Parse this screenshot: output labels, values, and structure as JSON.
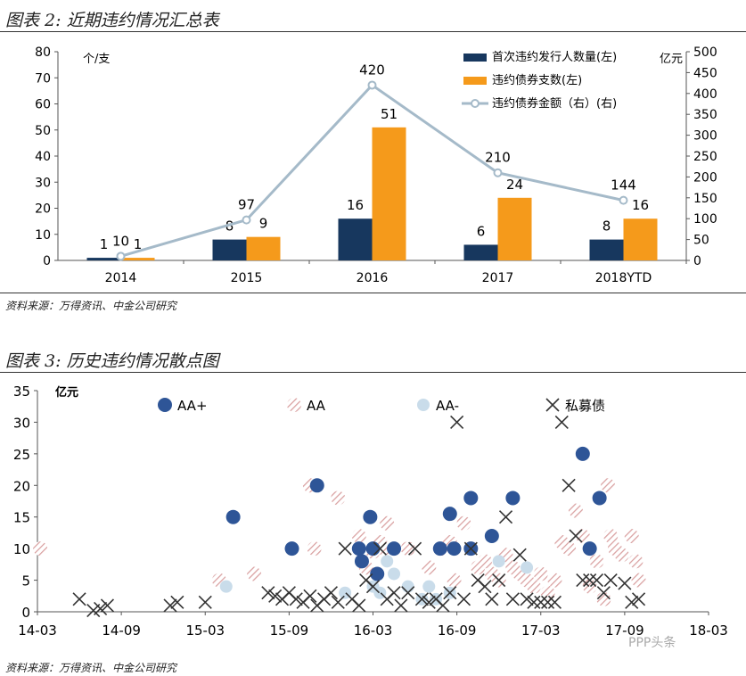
{
  "fig2": {
    "title": "图表 2: 近期违约情况汇总表",
    "source": "资料来源：万得资讯、中金公司研究"
  },
  "fig3": {
    "title": "图表 3: 历史违约情况散点图",
    "source": "资料来源：万得资讯、中金公司研究"
  },
  "watermark": "PPP头条",
  "chart_data": [
    {
      "type": "bar",
      "categories": [
        "2014",
        "2015",
        "2016",
        "2017",
        "2018YTD"
      ],
      "series": [
        {
          "name": "首次违约发行人数量(左)",
          "type": "bar",
          "axis": "left",
          "color": "#17375e",
          "values": [
            1,
            8,
            16,
            6,
            8
          ]
        },
        {
          "name": "违约债券支数(左)",
          "type": "bar",
          "axis": "left",
          "color": "#f59a1b",
          "values": [
            1,
            9,
            51,
            24,
            16
          ]
        },
        {
          "name": "违约债券金额（右）(右)",
          "type": "line",
          "axis": "right",
          "color": "#a5bac9",
          "values": [
            10,
            97,
            420,
            210,
            144
          ]
        }
      ],
      "ylabel_left": "个/支",
      "ylabel_right": "亿元",
      "ylim_left": [
        0,
        80
      ],
      "ylim_right": [
        0,
        500
      ],
      "yticks_left": [
        0,
        10,
        20,
        30,
        40,
        50,
        60,
        70,
        80
      ],
      "yticks_right": [
        0,
        50,
        100,
        150,
        200,
        250,
        300,
        350,
        400,
        450,
        500
      ],
      "legend": "top-right"
    },
    {
      "type": "scatter",
      "ylabel": "亿元",
      "ylim": [
        0,
        35
      ],
      "yticks": [
        0,
        5,
        10,
        15,
        20,
        25,
        30,
        35
      ],
      "xticks": [
        "14-03",
        "14-09",
        "15-03",
        "15-09",
        "16-03",
        "16-09",
        "17-03",
        "17-09",
        "18-03"
      ],
      "legend": "top",
      "series": [
        {
          "name": "AA+",
          "marker": "dot",
          "color": "#2e5597",
          "points": [
            [
              14.0,
              15
            ],
            [
              18.2,
              10
            ],
            [
              20.0,
              20
            ],
            [
              23.0,
              10
            ],
            [
              23.2,
              8
            ],
            [
              23.8,
              15
            ],
            [
              24.0,
              10
            ],
            [
              24.3,
              6
            ],
            [
              25.5,
              10
            ],
            [
              28.8,
              10
            ],
            [
              29.5,
              15.5
            ],
            [
              29.8,
              10
            ],
            [
              31.0,
              10
            ],
            [
              31.0,
              18
            ],
            [
              32.5,
              12
            ],
            [
              34.0,
              18
            ],
            [
              39.0,
              25
            ],
            [
              39.5,
              10
            ],
            [
              40.2,
              18
            ]
          ]
        },
        {
          "name": "AA",
          "marker": "hatched",
          "color": "#c0504d",
          "points": [
            [
              0.2,
              10
            ],
            [
              13.0,
              5
            ],
            [
              15.5,
              6
            ],
            [
              19.5,
              20
            ],
            [
              19.8,
              10
            ],
            [
              21.5,
              18
            ],
            [
              23.0,
              12
            ],
            [
              23.5,
              7
            ],
            [
              24.0,
              9.5
            ],
            [
              24.5,
              11
            ],
            [
              24.8,
              10
            ],
            [
              25.0,
              14
            ],
            [
              26.5,
              10
            ],
            [
              28.0,
              7
            ],
            [
              29.0,
              10
            ],
            [
              29.5,
              11
            ],
            [
              29.8,
              5
            ],
            [
              30.5,
              14
            ],
            [
              31.0,
              10
            ],
            [
              31.5,
              7
            ],
            [
              32.0,
              8
            ],
            [
              32.5,
              6
            ],
            [
              33.0,
              5
            ],
            [
              33.5,
              9
            ],
            [
              34.0,
              7
            ],
            [
              34.5,
              6
            ],
            [
              35.0,
              5
            ],
            [
              35.5,
              4
            ],
            [
              36.0,
              6
            ],
            [
              36.5,
              3
            ],
            [
              37.0,
              5
            ],
            [
              37.5,
              11
            ],
            [
              38.0,
              10
            ],
            [
              38.5,
              16
            ],
            [
              39.0,
              12
            ],
            [
              39.5,
              4
            ],
            [
              40.0,
              8
            ],
            [
              40.5,
              2
            ],
            [
              40.8,
              20
            ],
            [
              41.0,
              12
            ],
            [
              41.3,
              10
            ],
            [
              41.8,
              9
            ],
            [
              42.5,
              12
            ],
            [
              42.8,
              8
            ],
            [
              43.0,
              5
            ]
          ]
        },
        {
          "name": "AA-",
          "marker": "light",
          "color": "#c9dcea",
          "points": [
            [
              13.5,
              4
            ],
            [
              22.0,
              3
            ],
            [
              24.0,
              4
            ],
            [
              24.5,
              3
            ],
            [
              25.0,
              8
            ],
            [
              25.5,
              6
            ],
            [
              26.5,
              4
            ],
            [
              27.5,
              2
            ],
            [
              28.0,
              4
            ],
            [
              28.5,
              2
            ],
            [
              29.5,
              3
            ],
            [
              33.0,
              8
            ],
            [
              35.0,
              7
            ]
          ]
        },
        {
          "name": "私募债",
          "marker": "x",
          "color": "#333333",
          "points": [
            [
              3.0,
              2
            ],
            [
              4.0,
              0.2
            ],
            [
              4.5,
              0.5
            ],
            [
              5.0,
              1
            ],
            [
              9.5,
              1
            ],
            [
              10.0,
              1.5
            ],
            [
              12.0,
              1.5
            ],
            [
              16.5,
              3
            ],
            [
              17.0,
              2.5
            ],
            [
              17.5,
              2
            ],
            [
              18.0,
              3
            ],
            [
              18.5,
              2
            ],
            [
              19.0,
              1.5
            ],
            [
              19.5,
              2.5
            ],
            [
              20.0,
              1
            ],
            [
              20.5,
              2
            ],
            [
              21.0,
              3
            ],
            [
              21.5,
              1.5
            ],
            [
              22.0,
              10
            ],
            [
              22.5,
              2
            ],
            [
              23.0,
              1
            ],
            [
              23.5,
              5
            ],
            [
              24.0,
              4
            ],
            [
              24.5,
              10
            ],
            [
              25.0,
              2
            ],
            [
              25.5,
              3
            ],
            [
              26.0,
              1
            ],
            [
              26.5,
              3
            ],
            [
              27.0,
              10
            ],
            [
              27.5,
              2
            ],
            [
              28.0,
              1.5
            ],
            [
              28.5,
              2
            ],
            [
              29.0,
              1
            ],
            [
              29.5,
              3
            ],
            [
              30.0,
              30
            ],
            [
              30.5,
              2
            ],
            [
              31.0,
              10
            ],
            [
              31.5,
              5
            ],
            [
              32.0,
              4
            ],
            [
              32.5,
              2
            ],
            [
              33.0,
              5
            ],
            [
              33.5,
              15
            ],
            [
              34.0,
              2
            ],
            [
              34.5,
              9
            ],
            [
              35.0,
              2
            ],
            [
              35.5,
              1.5
            ],
            [
              36.0,
              1.5
            ],
            [
              36.5,
              1.5
            ],
            [
              37.0,
              1.5
            ],
            [
              37.5,
              30
            ],
            [
              38.0,
              20
            ],
            [
              38.5,
              12
            ],
            [
              39.0,
              5
            ],
            [
              39.5,
              5
            ],
            [
              40.0,
              5
            ],
            [
              40.5,
              3
            ],
            [
              41.0,
              5
            ],
            [
              42.0,
              4.5
            ],
            [
              42.5,
              1.5
            ],
            [
              43.0,
              2
            ]
          ]
        }
      ]
    }
  ]
}
